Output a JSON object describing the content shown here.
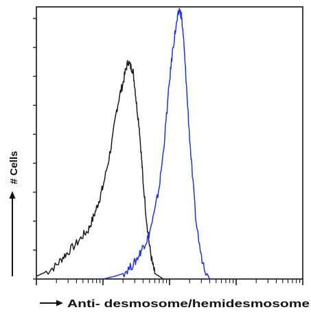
{
  "chart_data": {
    "type": "line",
    "title": "",
    "xlabel": "Anti- desmosome/hemidesmosome",
    "ylabel": "# Cells",
    "x_scale": "log",
    "xlim": [
      1,
      10000
    ],
    "ylim": [
      0,
      100
    ],
    "grid": false,
    "legend": "none",
    "tick_labels": "none",
    "series": [
      {
        "color": "#1a1a1a",
        "x": [
          1,
          1.5,
          2,
          2.5,
          3,
          4,
          5,
          6,
          7,
          8,
          9,
          10,
          12,
          14,
          16,
          18,
          20,
          22,
          24,
          26,
          28,
          30,
          32,
          35,
          38,
          40,
          45,
          50,
          55,
          60,
          70,
          80
        ],
        "values": [
          1,
          3,
          5,
          8,
          10,
          13,
          16,
          18,
          22,
          26,
          30,
          34,
          43,
          52,
          62,
          68,
          72,
          77,
          80,
          78,
          77,
          71,
          64,
          56,
          44,
          36,
          22,
          12,
          6,
          2,
          1,
          0
        ]
      },
      {
        "color": "#1c2ff2",
        "x": [
          10,
          15,
          20,
          25,
          30,
          35,
          40,
          45,
          50,
          60,
          70,
          80,
          90,
          100,
          110,
          120,
          130,
          140,
          150,
          160,
          170,
          180,
          200,
          220,
          250,
          300,
          350,
          400
        ],
        "values": [
          0,
          1,
          2,
          4,
          6,
          9,
          12,
          14,
          17,
          25,
          34,
          46,
          60,
          73,
          83,
          90,
          95,
          99,
          97,
          90,
          80,
          70,
          52,
          38,
          21,
          8,
          3,
          0
        ]
      }
    ]
  },
  "colors": {
    "axis": "#111111",
    "control": "#1a1a1a",
    "sample": "#1c2ff2"
  }
}
